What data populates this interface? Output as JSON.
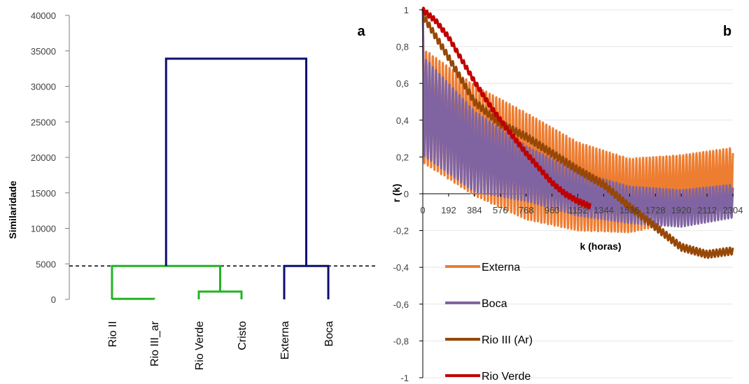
{
  "chart_data": [
    {
      "type": "dendrogram",
      "panel_label": "a",
      "ylabel": "Similaridade",
      "ylim": [
        0,
        40000
      ],
      "yticks": [
        0,
        5000,
        10000,
        15000,
        20000,
        25000,
        30000,
        35000,
        40000
      ],
      "leaves": [
        "Rio II",
        "Rio III_ar",
        "Rio Verde",
        "Cristo",
        "Externa",
        "Boca"
      ],
      "threshold": 4700,
      "colors": {
        "green": "#22b422",
        "blue": "#0d0d73",
        "dashed": "#000000"
      },
      "merges": [
        {
          "color": "green",
          "height": 80,
          "left": "Rio II",
          "right": "Rio III_ar"
        },
        {
          "color": "green",
          "height": 1100,
          "left": "Rio Verde",
          "right": "Cristo"
        },
        {
          "color": "green",
          "height": 4700,
          "left": "Rio II + Rio III_ar",
          "right": "Rio Verde + Cristo"
        },
        {
          "color": "blue",
          "height": 4700,
          "left": "Externa",
          "right": "Boca"
        },
        {
          "color": "blue",
          "height": 33900,
          "left": "green cluster",
          "right": "blue cluster"
        }
      ]
    },
    {
      "type": "line",
      "panel_label": "b",
      "xlabel": "k (horas)",
      "ylabel": "r (k)",
      "xlim": [
        0,
        2304
      ],
      "ylim": [
        -1,
        1
      ],
      "xtick_labels": [
        "0",
        "192",
        "384",
        "576",
        "768",
        "960",
        "1152",
        "1344",
        "1536",
        "1728",
        "1920",
        "2112",
        "2304"
      ],
      "ytick_labels": [
        "-1",
        "-0,8",
        "-0,6",
        "-0,4",
        "-0,2",
        "0",
        "0,2",
        "0,4",
        "0,6",
        "0,8",
        "1"
      ],
      "grid": "horizontal",
      "legend_position": "lower-left",
      "series": [
        {
          "name": "Externa",
          "color": "#ed7d31",
          "trend_k": [
            0,
            384,
            768,
            1152,
            1536,
            1920,
            2304
          ],
          "trend_r": [
            0.48,
            0.29,
            0.15,
            0.04,
            -0.01,
            0.03,
            0.09
          ],
          "oscillation_amplitude": [
            0.31,
            0.3,
            0.29,
            0.24,
            0.2,
            0.18,
            0.16
          ],
          "period_hours": 24.8
        },
        {
          "name": "Boca",
          "color": "#8064a2",
          "trend_k": [
            0,
            384,
            768,
            1152,
            1536,
            1920,
            2304
          ],
          "trend_r": [
            0.48,
            0.23,
            0.11,
            0.0,
            -0.06,
            -0.08,
            -0.04
          ],
          "oscillation_amplitude": [
            0.27,
            0.22,
            0.15,
            0.12,
            0.1,
            0.1,
            0.09
          ],
          "period_hours": 24.8
        },
        {
          "name": "Rio III (Ar)",
          "color": "#974706",
          "trend_k": [
            0,
            192,
            384,
            576,
            768,
            960,
            1152,
            1344,
            1536,
            1728,
            1920,
            2112,
            2304
          ],
          "trend_r": [
            0.97,
            0.74,
            0.5,
            0.38,
            0.31,
            0.22,
            0.13,
            0.05,
            -0.07,
            -0.18,
            -0.29,
            -0.33,
            -0.31
          ],
          "oscillation_amplitude": 0.02,
          "period_hours": 24.8
        },
        {
          "name": "Rio Verde",
          "color": "#c00000",
          "k": [
            0,
            96,
            192,
            288,
            384,
            480,
            576,
            672,
            768,
            864,
            960,
            1056,
            1152,
            1248
          ],
          "r": [
            1.0,
            0.94,
            0.85,
            0.73,
            0.61,
            0.5,
            0.4,
            0.31,
            0.22,
            0.14,
            0.06,
            -0.0,
            -0.04,
            -0.07
          ]
        }
      ]
    }
  ]
}
